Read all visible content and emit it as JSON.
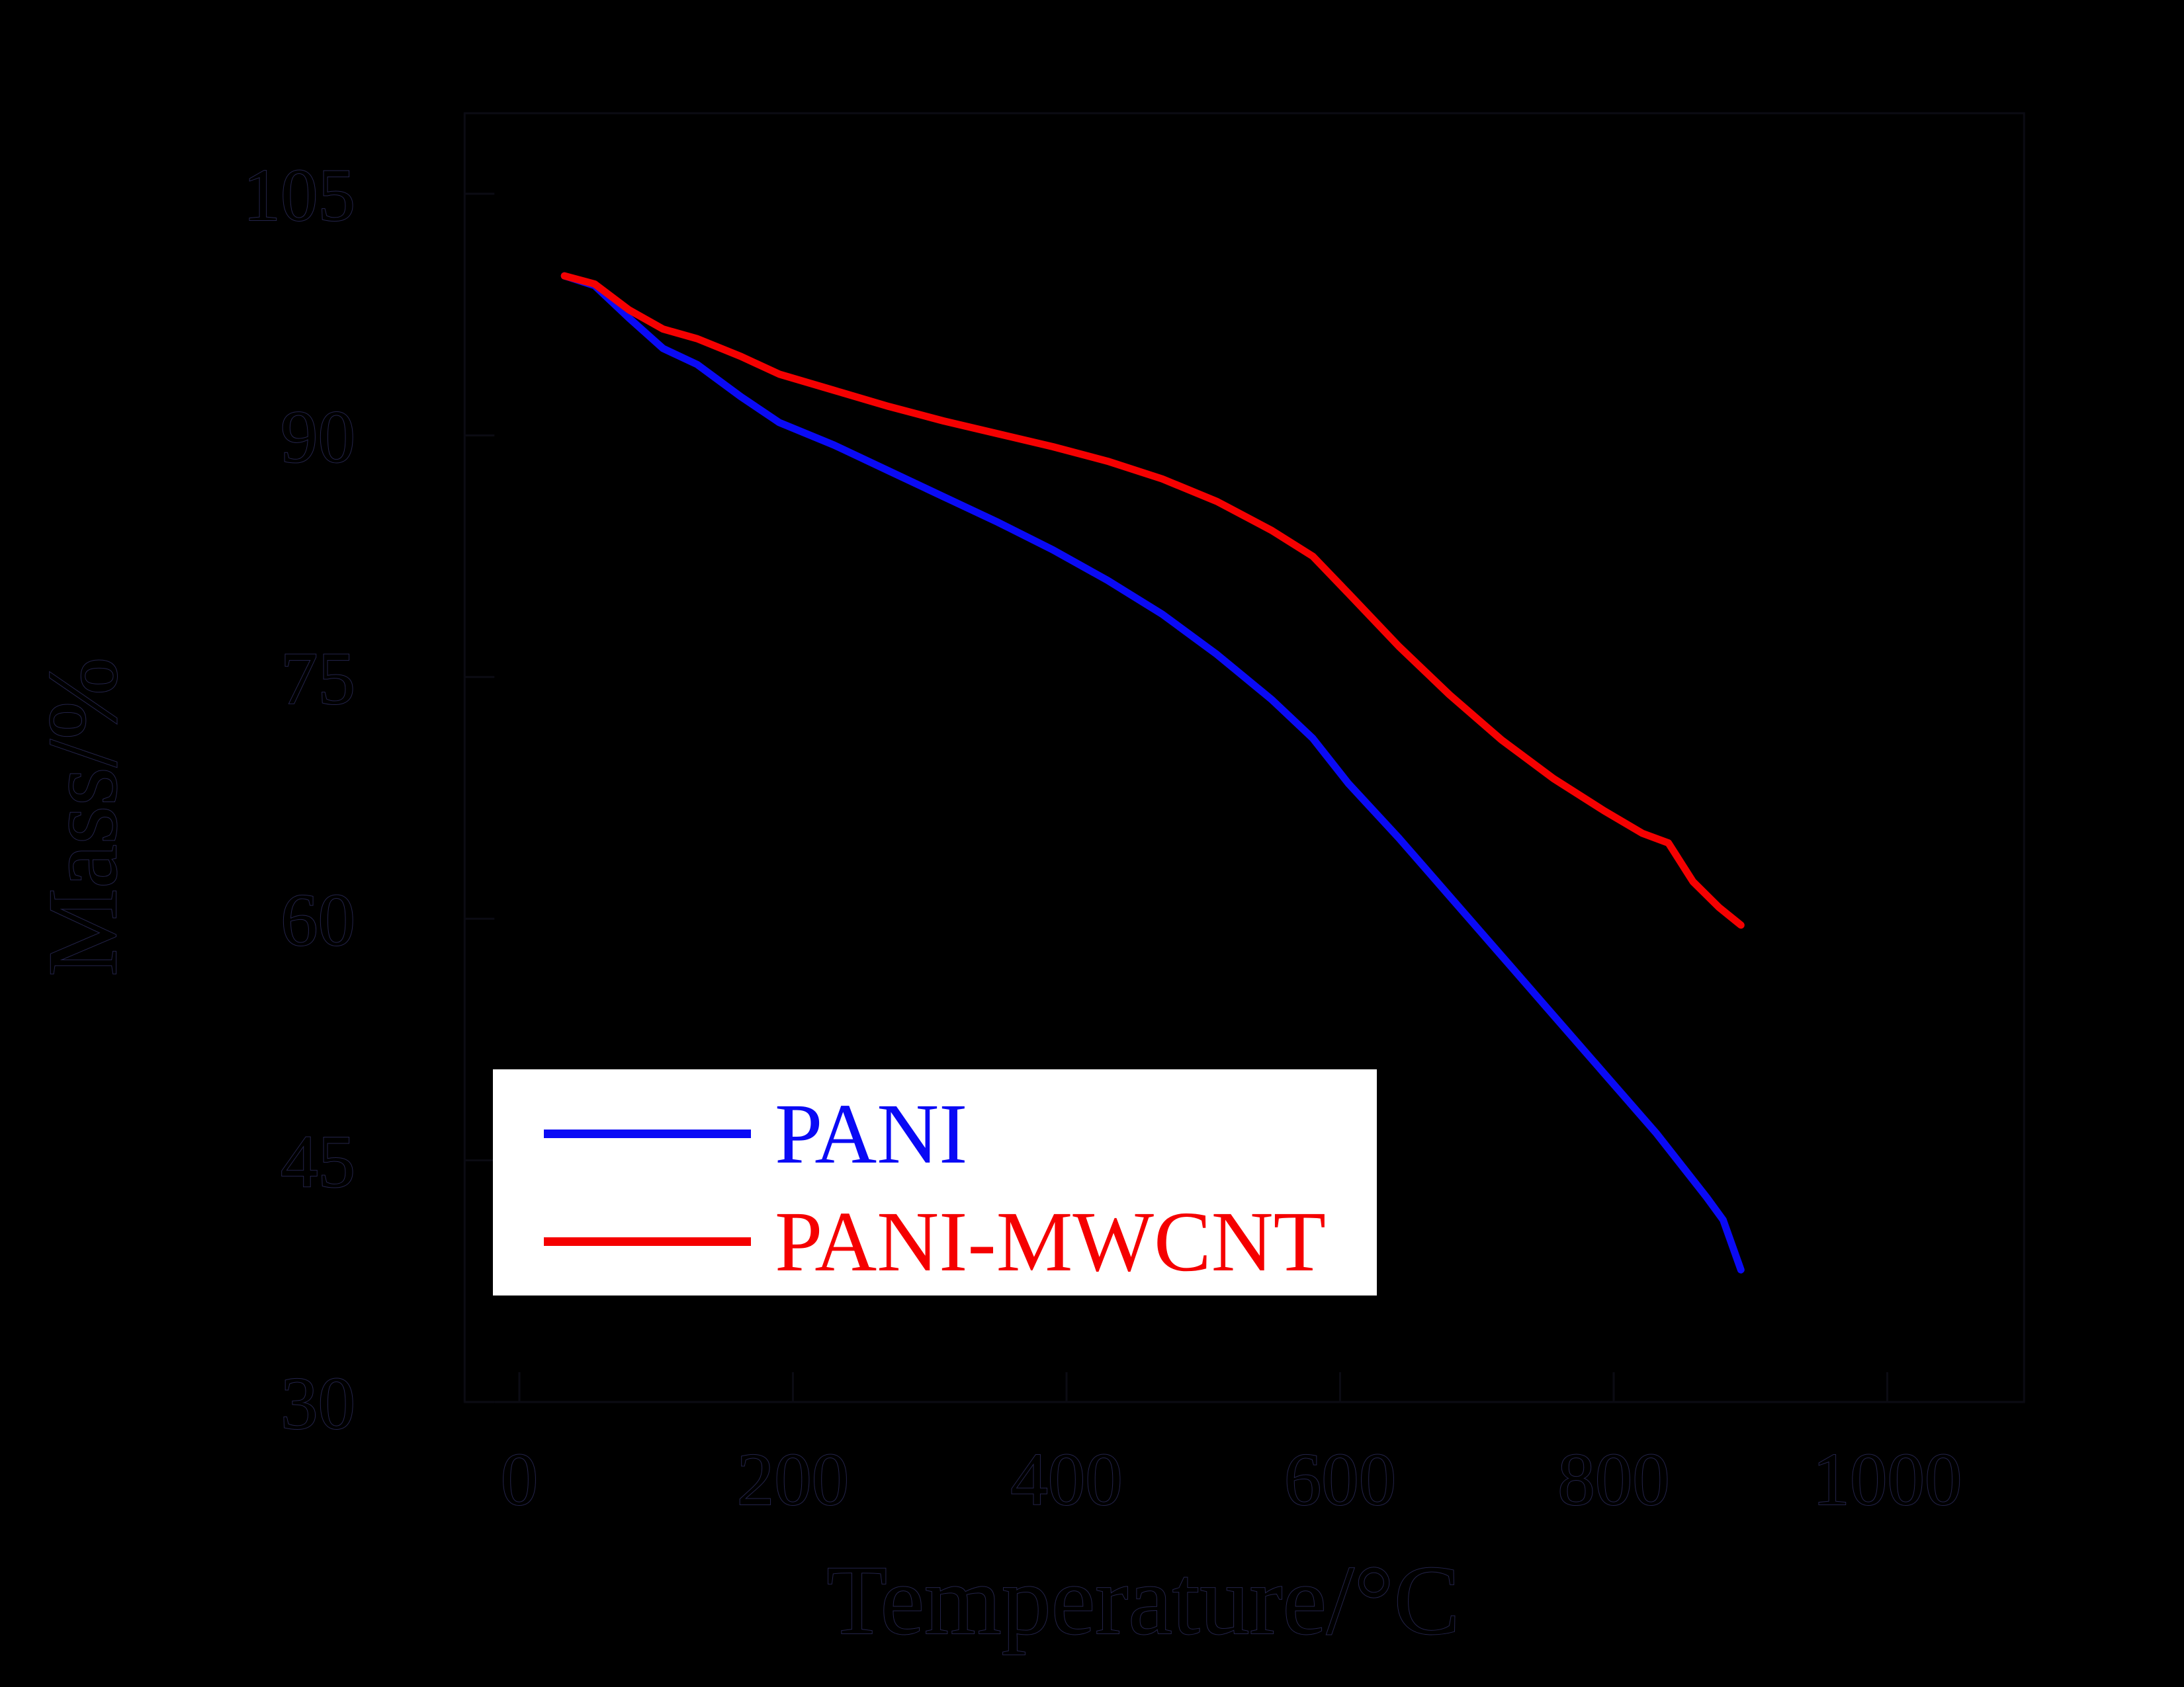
{
  "figure": {
    "background_color": "#000000",
    "axis_text_color": "#000000",
    "axis_text_halo_color": "#23234a",
    "frame_color": "#0b0b13",
    "legend_bg_color": "#ffffff"
  },
  "chart_data": {
    "type": "line",
    "title": "",
    "xlabel": "Temperature/°C",
    "ylabel": "Mass/%",
    "xlim": [
      -40,
      1100
    ],
    "ylim": [
      30,
      110
    ],
    "x_ticks": [
      0,
      200,
      400,
      600,
      800,
      1000
    ],
    "y_ticks": [
      30,
      45,
      60,
      75,
      90,
      105
    ],
    "grid": false,
    "legend": {
      "position": "inside-lower-left",
      "entries": [
        "PANI",
        "PANI-MWCNT"
      ]
    },
    "series": [
      {
        "name": "PANI",
        "color": "#0a0af5",
        "points": [
          [
            33,
            99.9
          ],
          [
            55,
            99.3
          ],
          [
            80,
            97.3
          ],
          [
            105,
            95.4
          ],
          [
            130,
            94.4
          ],
          [
            162,
            92.4
          ],
          [
            190,
            90.8
          ],
          [
            230,
            89.4
          ],
          [
            270,
            87.8
          ],
          [
            310,
            86.2
          ],
          [
            350,
            84.6
          ],
          [
            390,
            82.9
          ],
          [
            430,
            81.0
          ],
          [
            470,
            78.9
          ],
          [
            510,
            76.4
          ],
          [
            550,
            73.6
          ],
          [
            580,
            71.2
          ],
          [
            606,
            68.4
          ],
          [
            643,
            65.0
          ],
          [
            680,
            61.4
          ],
          [
            718,
            57.7
          ],
          [
            756,
            54.0
          ],
          [
            793,
            50.4
          ],
          [
            831,
            46.7
          ],
          [
            868,
            42.7
          ],
          [
            880,
            41.3
          ],
          [
            893,
            38.2
          ]
        ]
      },
      {
        "name": "PANI-MWCNT",
        "color": "#f50000",
        "points": [
          [
            33,
            99.9
          ],
          [
            55,
            99.4
          ],
          [
            80,
            97.8
          ],
          [
            105,
            96.6
          ],
          [
            130,
            96.0
          ],
          [
            162,
            94.9
          ],
          [
            190,
            93.8
          ],
          [
            230,
            92.8
          ],
          [
            270,
            91.8
          ],
          [
            310,
            90.9
          ],
          [
            350,
            90.1
          ],
          [
            390,
            89.3
          ],
          [
            430,
            88.4
          ],
          [
            470,
            87.3
          ],
          [
            510,
            85.9
          ],
          [
            550,
            84.1
          ],
          [
            580,
            82.5
          ],
          [
            606,
            80.2
          ],
          [
            643,
            76.9
          ],
          [
            680,
            73.9
          ],
          [
            718,
            71.1
          ],
          [
            756,
            68.7
          ],
          [
            793,
            66.7
          ],
          [
            821,
            65.3
          ],
          [
            840,
            64.7
          ],
          [
            858,
            62.3
          ],
          [
            877,
            60.7
          ],
          [
            893,
            59.6
          ]
        ]
      }
    ]
  }
}
